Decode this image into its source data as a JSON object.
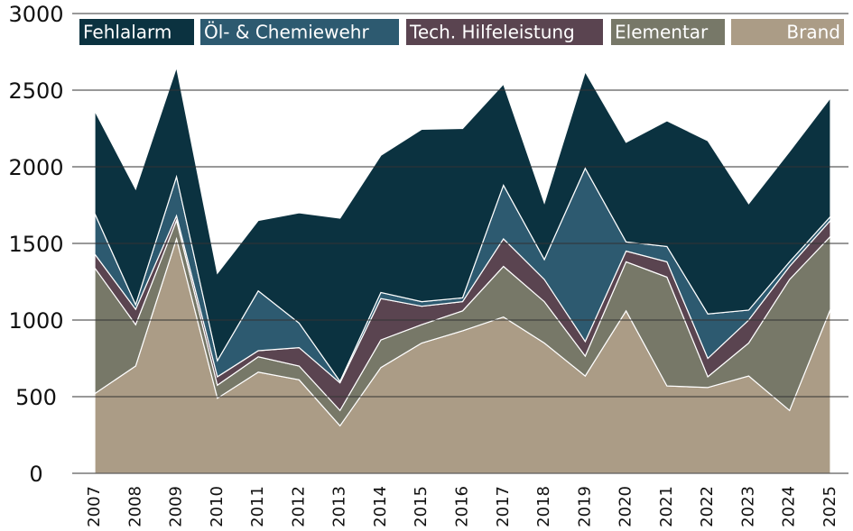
{
  "chart_data": {
    "type": "stacked_area",
    "categories": [
      "2007",
      "2008",
      "2009",
      "2010",
      "2011",
      "2012",
      "2013",
      "2014",
      "2015",
      "2016",
      "2017",
      "2018",
      "2019",
      "2020",
      "2021",
      "2022",
      "2023",
      "2024",
      "2025"
    ],
    "series": [
      {
        "name": "Fehlalarm",
        "color": "#0b3240",
        "values": [
          670,
          755,
          715,
          570,
          460,
          720,
          1065,
          895,
          1125,
          1105,
          660,
          370,
          630,
          650,
          820,
          1130,
          695,
          720,
          775
        ]
      },
      {
        "name": "Öl- & Chemiewehr",
        "color": "#2d5a70",
        "values": [
          265,
          30,
          255,
          105,
          390,
          160,
          10,
          40,
          30,
          25,
          350,
          130,
          1130,
          60,
          100,
          290,
          65,
          30,
          25
        ]
      },
      {
        "name": "Tech. Hilfeleistung",
        "color": "#5a4450",
        "values": [
          90,
          100,
          30,
          55,
          40,
          120,
          180,
          270,
          120,
          60,
          180,
          145,
          95,
          70,
          100,
          120,
          150,
          85,
          105
        ]
      },
      {
        "name": "Elementar",
        "color": "#777868",
        "values": [
          820,
          270,
          120,
          85,
          100,
          90,
          100,
          180,
          120,
          130,
          330,
          270,
          130,
          320,
          710,
          70,
          215,
          855,
          475
        ]
      },
      {
        "name": "Brand",
        "color": "#ab9c86",
        "values": [
          520,
          700,
          1530,
          490,
          660,
          610,
          310,
          690,
          850,
          930,
          1020,
          850,
          635,
          1060,
          570,
          560,
          635,
          410,
          1070
        ]
      }
    ],
    "ylim": [
      0,
      3000
    ],
    "yticks": [
      0,
      500,
      1000,
      1500,
      2000,
      2500,
      3000
    ],
    "grid": true,
    "legend": "top"
  }
}
